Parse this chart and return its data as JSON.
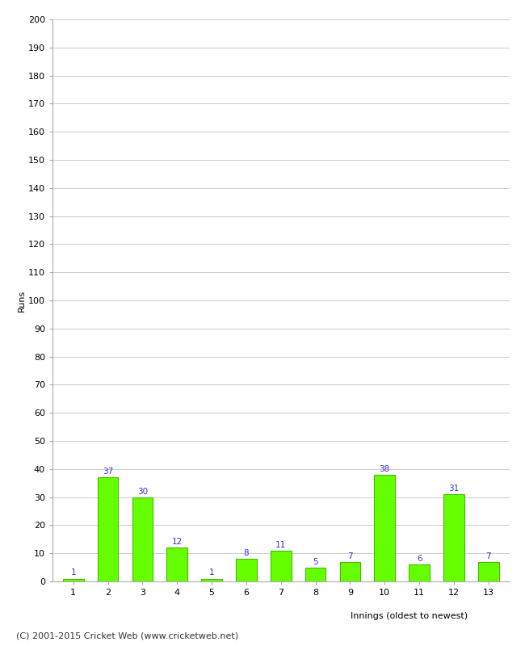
{
  "xlabel": "Innings (oldest to newest)",
  "ylabel": "Runs",
  "values": [
    1,
    37,
    30,
    12,
    1,
    8,
    11,
    5,
    7,
    38,
    6,
    31,
    7
  ],
  "categories": [
    "1",
    "2",
    "3",
    "4",
    "5",
    "6",
    "7",
    "8",
    "9",
    "10",
    "11",
    "12",
    "13"
  ],
  "bar_color": "#66ff00",
  "bar_edge_color": "#44bb00",
  "ylim": [
    0,
    200
  ],
  "ytick_step": 10,
  "background_color": "#ffffff",
  "grid_color": "#cccccc",
  "label_color": "#3333cc",
  "footer": "(C) 2001-2015 Cricket Web (www.cricketweb.net)",
  "axis_label_fontsize": 8,
  "tick_fontsize": 8,
  "value_label_fontsize": 7.5,
  "footer_fontsize": 8
}
